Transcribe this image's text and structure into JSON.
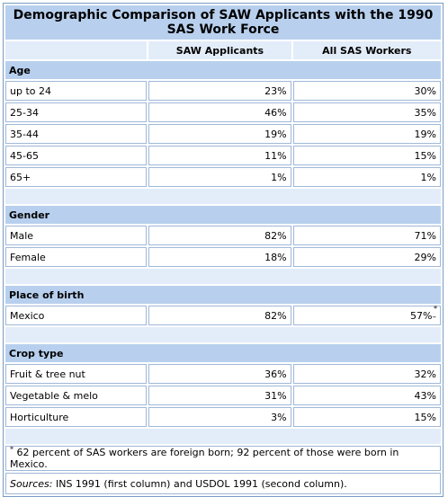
{
  "title": "Demographic Comparison of SAW Applicants with the 1990 SAS Work Force",
  "columns": [
    "",
    "SAW Applicants",
    "All SAS Workers"
  ],
  "sections": [
    {
      "heading": "Age",
      "rows": [
        {
          "label": "up to 24",
          "saw": "23%",
          "sas": "30%"
        },
        {
          "label": "25-34",
          "saw": "46%",
          "sas": "35%"
        },
        {
          "label": "35-44",
          "saw": "19%",
          "sas": "19%"
        },
        {
          "label": "45-65",
          "saw": "11%",
          "sas": "15%"
        },
        {
          "label": "65+",
          "saw": "1%",
          "sas": "1%"
        }
      ]
    },
    {
      "heading": "Gender",
      "rows": [
        {
          "label": "Male",
          "saw": "82%",
          "sas": "71%"
        },
        {
          "label": "Female",
          "saw": "18%",
          "sas": "29%"
        }
      ]
    },
    {
      "heading": "Place of birth",
      "rows": [
        {
          "label": "Mexico",
          "saw": "82%",
          "sas": "57%",
          "sas_marker": "*"
        }
      ]
    },
    {
      "heading": "Crop type",
      "rows": [
        {
          "label": "Fruit & tree nut",
          "saw": "36%",
          "sas": "32%"
        },
        {
          "label": "Vegetable & melo",
          "saw": "31%",
          "sas": "43%"
        },
        {
          "label": "Horticulture",
          "saw": "3%",
          "sas": "15%"
        }
      ]
    }
  ],
  "footnote": {
    "marker": "*",
    "text": "62 percent of SAS workers are foreign born; 92 percent of those were born in Mexico."
  },
  "sources": {
    "label": "Sources:",
    "text": "INS 1991 (first column) and USDOL 1991 (second column)."
  },
  "colors": {
    "header_bg": "#b8d0ee",
    "subheader_bg": "#e3edf9",
    "border": "#9fb8d8"
  }
}
